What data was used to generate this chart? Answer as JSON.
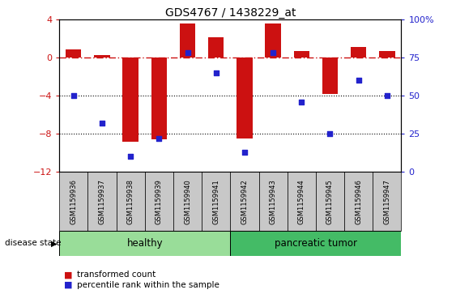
{
  "title": "GDS4767 / 1438229_at",
  "samples": [
    "GSM1159936",
    "GSM1159937",
    "GSM1159938",
    "GSM1159939",
    "GSM1159940",
    "GSM1159941",
    "GSM1159942",
    "GSM1159943",
    "GSM1159944",
    "GSM1159945",
    "GSM1159946",
    "GSM1159947"
  ],
  "transformed_count": [
    0.8,
    0.2,
    -8.8,
    -8.6,
    3.5,
    2.1,
    -8.5,
    3.5,
    0.7,
    -3.8,
    1.1,
    0.7
  ],
  "percentile_rank": [
    50,
    32,
    10,
    22,
    78,
    65,
    13,
    78,
    46,
    25,
    60,
    50
  ],
  "healthy_indices": [
    0,
    1,
    2,
    3,
    4,
    5
  ],
  "tumor_indices": [
    6,
    7,
    8,
    9,
    10,
    11
  ],
  "healthy_label": "healthy",
  "tumor_label": "pancreatic tumor",
  "disease_state_label": "disease state",
  "ylim_left": [
    -12,
    4
  ],
  "ylim_right": [
    0,
    100
  ],
  "yticks_left": [
    -12,
    -8,
    -4,
    0,
    4
  ],
  "yticks_right": [
    0,
    25,
    50,
    75,
    100
  ],
  "bar_color": "#CC1111",
  "dot_color": "#2222CC",
  "hline_color": "#CC1111",
  "hline_style": "-.",
  "grid_color": "#000000",
  "label_area_color": "#C8C8C8",
  "healthy_bg": "#99DD99",
  "tumor_bg": "#44BB66",
  "legend_bar_label": "transformed count",
  "legend_dot_label": "percentile rank within the sample",
  "bar_width": 0.55
}
